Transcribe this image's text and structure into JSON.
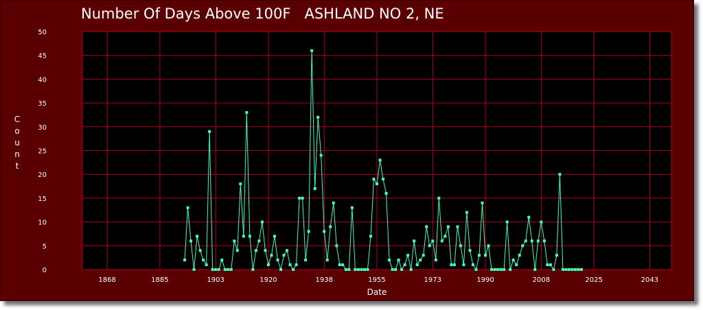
{
  "chart_data": {
    "type": "line",
    "title": "Number Of Days Above 100F   ASHLAND NO 2, NE",
    "xlabel": "Date",
    "ylabel": "Count",
    "xlim": [
      1860,
      2050
    ],
    "ylim": [
      0,
      50
    ],
    "x_ticks": [
      "1868",
      "1885",
      "1903",
      "1920",
      "1938",
      "1955",
      "1973",
      "1990",
      "2008",
      "2025",
      "2043"
    ],
    "y_ticks": [
      "0",
      "5",
      "10",
      "15",
      "20",
      "25",
      "30",
      "35",
      "40",
      "45",
      "50"
    ],
    "grid": true,
    "series": [
      {
        "x": [
          1893,
          1894,
          1895,
          1896,
          1897,
          1898,
          1899,
          1900,
          1901,
          1902,
          1903,
          1904,
          1905,
          1906,
          1907,
          1908,
          1909,
          1910,
          1911,
          1912,
          1913,
          1914,
          1915,
          1916,
          1917,
          1918,
          1919,
          1920,
          1921,
          1922,
          1923,
          1924,
          1925,
          1926,
          1927,
          1928,
          1929,
          1930,
          1931,
          1932,
          1933,
          1934,
          1935,
          1936,
          1937,
          1938,
          1939,
          1940,
          1941,
          1942,
          1943,
          1944,
          1945,
          1946,
          1947,
          1948,
          1949,
          1950,
          1951,
          1952,
          1953,
          1954,
          1955,
          1956,
          1957,
          1958,
          1959,
          1960,
          1961,
          1962,
          1963,
          1964,
          1965,
          1966,
          1967,
          1968,
          1969,
          1970,
          1971,
          1972,
          1973,
          1974,
          1975,
          1976,
          1977,
          1978,
          1979,
          1980,
          1981,
          1982,
          1983,
          1984,
          1985,
          1986,
          1987,
          1988,
          1989,
          1990,
          1991,
          1992,
          1993,
          1994,
          1995,
          1996,
          1997,
          1998,
          1999,
          2000,
          2001,
          2002,
          2003,
          2004,
          2005,
          2006,
          2007,
          2008,
          2009,
          2010,
          2011,
          2012,
          2013,
          2014,
          2015,
          2016,
          2017,
          2018,
          2019,
          2020,
          2021
        ],
        "values": [
          2,
          13,
          6,
          0,
          7,
          4,
          2,
          1,
          29,
          0,
          0,
          0,
          2,
          0,
          0,
          0,
          6,
          4,
          18,
          7,
          33,
          7,
          0,
          4,
          6,
          10,
          4,
          1,
          3,
          7,
          2,
          0,
          3,
          4,
          1,
          0,
          1,
          15,
          15,
          2,
          8,
          46,
          17,
          32,
          24,
          8,
          2,
          9,
          14,
          5,
          1,
          1,
          0,
          0,
          13,
          0,
          0,
          0,
          0,
          0,
          7,
          19,
          18,
          23,
          19,
          16,
          2,
          0,
          0,
          2,
          0,
          1,
          3,
          0,
          6,
          1,
          2,
          3,
          9,
          5,
          6,
          2,
          15,
          6,
          7,
          9,
          1,
          1,
          9,
          5,
          1,
          12,
          4,
          1,
          0,
          3,
          14,
          3,
          5,
          0,
          0,
          0,
          0,
          0,
          10,
          0,
          2,
          1,
          3,
          5,
          6,
          11,
          6,
          0,
          6,
          10,
          6,
          1,
          1,
          0,
          3,
          20,
          0,
          0,
          0,
          0,
          0,
          0,
          0
        ]
      }
    ],
    "colors": {
      "background": "#5a0000",
      "plot": "#000000",
      "grid": "#b00018",
      "series": "#40ffc0"
    }
  }
}
